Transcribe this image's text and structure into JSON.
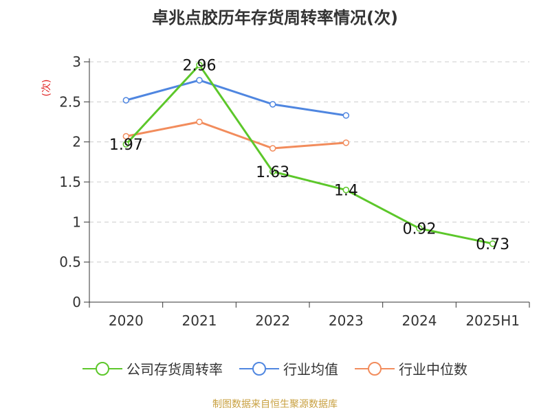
{
  "chart_data": {
    "type": "line",
    "title": "卓兆点胶历年存货周转率情况(次)",
    "ylabel": "(次)",
    "categories": [
      "2020",
      "2021",
      "2022",
      "2023",
      "2024",
      "2025H1"
    ],
    "ylim": [
      0,
      3
    ],
    "yticks": [
      "0",
      "0.5",
      "1",
      "1.5",
      "2",
      "2.5",
      "3"
    ],
    "grid": "horizontal-dashed",
    "legend_position": "bottom",
    "series": [
      {
        "name": "公司存货周转率",
        "color": "#5cc72a",
        "values": [
          1.97,
          2.96,
          1.63,
          1.4,
          0.92,
          0.73
        ],
        "labels": [
          "1.97",
          "2.96",
          "1.63",
          "1.4",
          "0.92",
          "0.73"
        ]
      },
      {
        "name": "行业均值",
        "color": "#4f86e0",
        "values": [
          2.52,
          2.77,
          2.47,
          2.33,
          null,
          null
        ]
      },
      {
        "name": "行业中位数",
        "color": "#f28c5c",
        "values": [
          2.07,
          2.25,
          1.92,
          1.99,
          null,
          null
        ]
      }
    ]
  },
  "source": "制图数据来自恒生聚源数据库"
}
